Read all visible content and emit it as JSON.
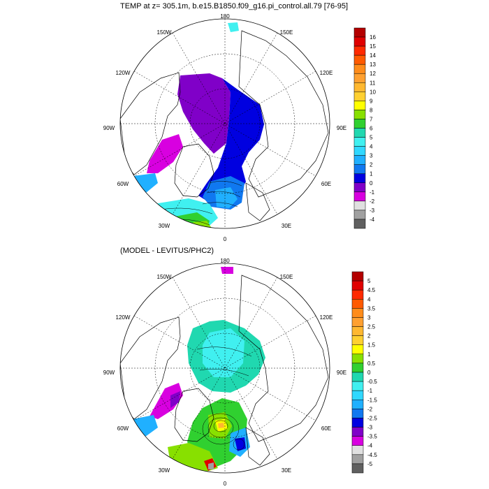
{
  "panels": [
    {
      "title": "TEMP at z= 305.1m, b.e15.B1850.f09_g16.pi_control.all.79 [76-95]",
      "lon_labels": {
        "top": "180",
        "upper_left": "150W",
        "upper_right": "150E",
        "left_upper": "120W",
        "right_upper": "120E",
        "left": "90W",
        "right": "90E",
        "left_lower": "60W",
        "right_lower": "60E",
        "bottom_left": "30W",
        "bottom_right": "30E",
        "bottom": "0"
      },
      "colorbar": {
        "labels": [
          "16",
          "15",
          "14",
          "13",
          "12",
          "11",
          "10",
          "9",
          "8",
          "7",
          "6",
          "5",
          "4",
          "3",
          "2",
          "1",
          "0",
          "-1",
          "-2",
          "-3",
          "-4"
        ],
        "colors": [
          "#b40000",
          "#e00000",
          "#ff2a00",
          "#ff5a00",
          "#ff8c1a",
          "#ffa030",
          "#ffb830",
          "#ffd030",
          "#ffff00",
          "#88e000",
          "#30d030",
          "#20d8b0",
          "#40f0f0",
          "#30d8ff",
          "#20b0ff",
          "#1078f0",
          "#0000e0",
          "#8000c8",
          "#d800e0",
          "#e0e0e0",
          "#a0a0a0",
          "#606060"
        ]
      }
    },
    {
      "title": "(MODEL - LEVITUS/PHC2)",
      "lon_labels": {
        "top": "180",
        "upper_left": "150W",
        "upper_right": "150E",
        "left_upper": "120W",
        "right_upper": "120E",
        "left": "90W",
        "right": "90E",
        "left_lower": "60W",
        "right_lower": "60E",
        "bottom_left": "30W",
        "bottom_right": "30E",
        "bottom": "0"
      },
      "colorbar": {
        "labels": [
          "5",
          "4.5",
          "4",
          "3.5",
          "3",
          "2.5",
          "2",
          "1.5",
          "1",
          "0.5",
          "0",
          "-0.5",
          "-1",
          "-1.5",
          "-2",
          "-2.5",
          "-3",
          "-3.5",
          "-4",
          "-4.5",
          "-5"
        ],
        "colors": [
          "#b40000",
          "#e00000",
          "#ff2a00",
          "#ff5a00",
          "#ff8c1a",
          "#ffa030",
          "#ffb830",
          "#ffd030",
          "#ffff00",
          "#88e000",
          "#30d030",
          "#20d8b0",
          "#40f0f0",
          "#30d8ff",
          "#20b0ff",
          "#1078f0",
          "#0000e0",
          "#8000c8",
          "#d800e0",
          "#e0e0e0",
          "#a0a0a0",
          "#606060"
        ]
      }
    }
  ]
}
